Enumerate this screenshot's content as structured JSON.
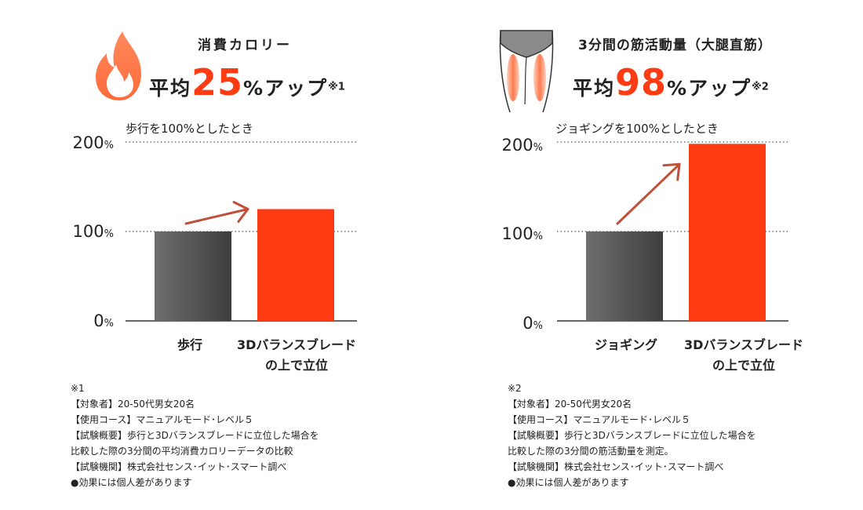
{
  "charts": [
    {
      "heading": "消費カロリー",
      "headline": {
        "prefix": "平均",
        "number": "25",
        "suffix": "%アップ",
        "note": "※1"
      },
      "baseline_text": "歩行を100%としたとき",
      "icon": "flame-icon",
      "footnotes": [
        "※1",
        "【対象者】20-50代男女20名",
        "【使用コース】マニュアルモード･レベル５",
        "【試験概要】歩行と3Dバランスブレードに立位した場合を",
        "比較した際の3分間の平均消費カロリーデータの比較",
        "【試験機関】株式会社センス･イット･スマート調べ",
        "●効果には個人差があります"
      ]
    },
    {
      "heading": "3分間の筋活動量（大腿直筋）",
      "headline": {
        "prefix": "平均",
        "number": "98",
        "suffix": "%アップ",
        "note": "※2"
      },
      "baseline_text": "ジョギングを100%としたとき",
      "icon": "thigh-muscle-icon",
      "footnotes": [
        "※2",
        "【対象者】20-50代男女20名",
        "【使用コース】マニュアルモード･レベル５",
        "【試験概要】歩行と3Dバランスブレードに立位した場合を",
        "比較した際の3分間の筋活動量を測定。",
        "【試験機関】株式会社センス･イット･スマート調べ",
        "●効果には個人差があります"
      ]
    }
  ],
  "chart_data": [
    {
      "type": "bar",
      "categories": [
        "歩行",
        "3Dバランスブレード\nの上で立位"
      ],
      "values": [
        100,
        125
      ],
      "ylim": [
        0,
        200
      ],
      "yticks": [
        "200",
        "100",
        "0"
      ],
      "yunit": "%",
      "grid": "dotted at 100 and 200",
      "colors": [
        "#5a5a5a",
        "#ff3b14"
      ],
      "arrow_color": "#c0503a"
    },
    {
      "type": "bar",
      "categories": [
        "ジョギング",
        "3Dバランスブレード\nの上で立位"
      ],
      "values": [
        100,
        198
      ],
      "ylim": [
        0,
        200
      ],
      "yticks": [
        "200",
        "100",
        "0"
      ],
      "yunit": "%",
      "grid": "dotted at 100 and 200",
      "colors": [
        "#5a5a5a",
        "#ff3b14"
      ],
      "arrow_color": "#c0503a"
    }
  ]
}
